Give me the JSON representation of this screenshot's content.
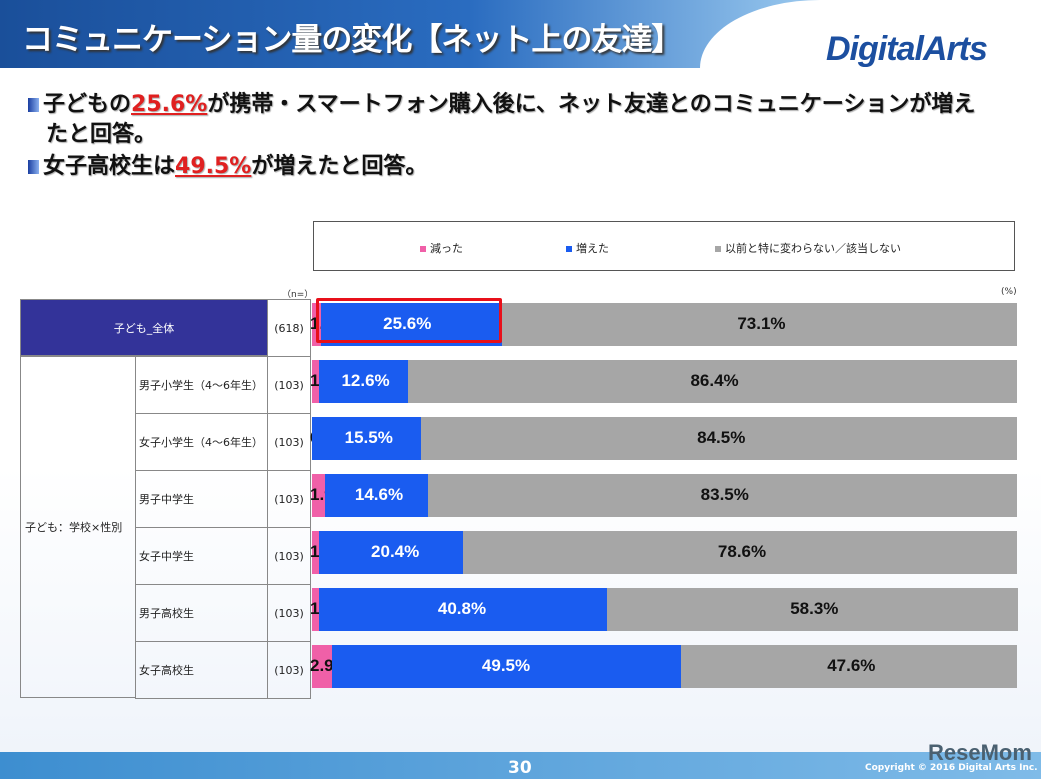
{
  "header": {
    "title": "コミュニケーション量の変化【ネット上の友達】",
    "logo": "DigitalArts"
  },
  "bullets": [
    {
      "pre": "子どもの",
      "highlight": "25.6%",
      "post": "が携帯・スマートフォン購入後に、ネット友達とのコミュニケーションが増え",
      "line2": "たと回答。"
    },
    {
      "pre": "女子高校生は",
      "highlight": "49.5%",
      "post": "が増えたと回答。",
      "line2": ""
    }
  ],
  "footer": {
    "page": "30",
    "copyright": "Copyright © 2016 Digital Arts Inc.",
    "watermark": "ReseMom"
  },
  "chart_data": {
    "type": "bar",
    "stacked": true,
    "orientation": "horizontal",
    "xlim": [
      0,
      100
    ],
    "n_label": "（n=）",
    "unit_label": "(%)",
    "legend_position": "top",
    "group_labels": {
      "total": "子ども_全体",
      "segment": "子ども：学校×性別"
    },
    "categories": [
      "子ども_全体",
      "男子小学生（4～6年生）",
      "女子小学生（4～6年生）",
      "男子中学生",
      "女子中学生",
      "男子高校生",
      "女子高校生"
    ],
    "n": [
      "(618)",
      "(103)",
      "(103)",
      "(103)",
      "(103)",
      "(103)",
      "(103)"
    ],
    "series": [
      {
        "name": "減った",
        "color": "#f060a8",
        "values": [
          1.3,
          1.0,
          0.0,
          1.9,
          1.0,
          1.0,
          2.9
        ]
      },
      {
        "name": "増えた",
        "color": "#1a5cf0",
        "values": [
          25.6,
          12.6,
          15.5,
          14.6,
          20.4,
          40.8,
          49.5
        ]
      },
      {
        "name": "以前と特に変わらない／該当しない",
        "color": "#a6a6a6",
        "values": [
          73.1,
          86.4,
          84.5,
          83.5,
          78.6,
          58.3,
          47.6
        ]
      }
    ],
    "highlight": {
      "category": "子ども_全体",
      "color": "#e8101a"
    }
  }
}
